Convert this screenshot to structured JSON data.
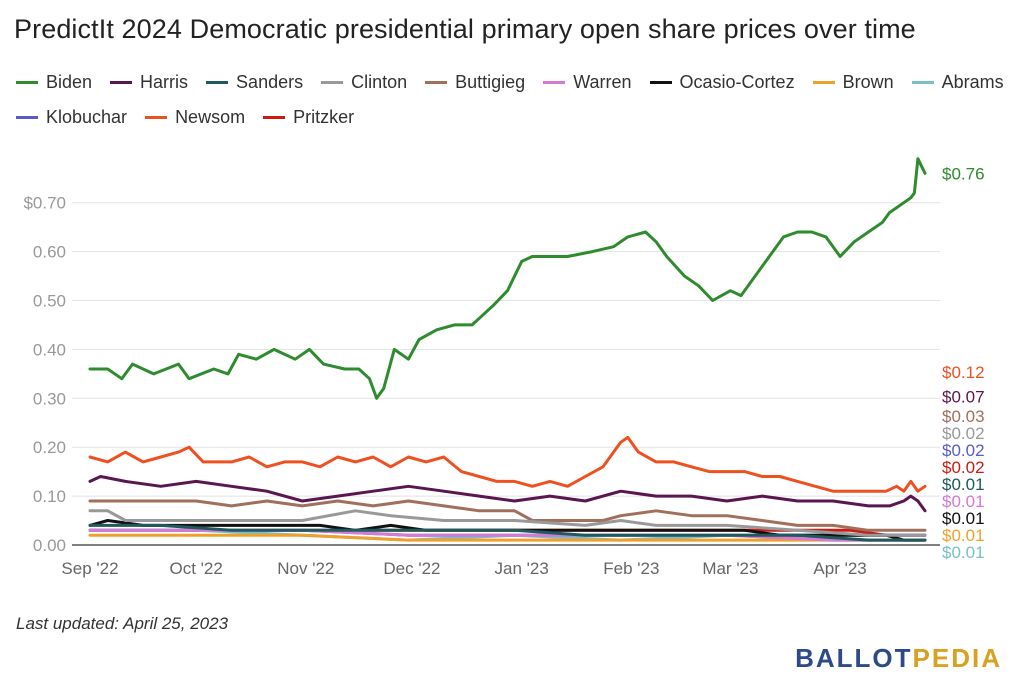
{
  "chart_data": {
    "type": "line",
    "title": "PredictIt 2024 Democratic presidential primary open share prices over time",
    "footer": "Last updated: April 25, 2023",
    "ylim": [
      0,
      0.8
    ],
    "yticks": [
      "$0.70",
      "0.60",
      "0.50",
      "0.40",
      "0.30",
      "0.20",
      "0.10",
      "0.00"
    ],
    "ytick_values": [
      0.7,
      0.6,
      0.5,
      0.4,
      0.3,
      0.2,
      0.1,
      0.0
    ],
    "xticks": [
      "Sep '22",
      "Oct '22",
      "Nov '22",
      "Dec '22",
      "Jan '23",
      "Feb '23",
      "Mar '23",
      "Apr '23"
    ],
    "xtick_days": [
      0,
      30,
      61,
      91,
      122,
      153,
      181,
      212
    ],
    "x_end_day": 236,
    "x_start": "2022-09-01",
    "x_end": "2023-04-25",
    "grid": true,
    "legend_position": "top",
    "series": [
      {
        "name": "Biden",
        "color": "#2e8b2e",
        "end_label": "$0.76",
        "points": [
          [
            0,
            0.36
          ],
          [
            5,
            0.36
          ],
          [
            9,
            0.34
          ],
          [
            12,
            0.37
          ],
          [
            18,
            0.35
          ],
          [
            25,
            0.37
          ],
          [
            28,
            0.34
          ],
          [
            35,
            0.36
          ],
          [
            39,
            0.35
          ],
          [
            42,
            0.39
          ],
          [
            47,
            0.38
          ],
          [
            52,
            0.4
          ],
          [
            58,
            0.38
          ],
          [
            62,
            0.4
          ],
          [
            66,
            0.37
          ],
          [
            72,
            0.36
          ],
          [
            76,
            0.36
          ],
          [
            79,
            0.34
          ],
          [
            81,
            0.3
          ],
          [
            83,
            0.32
          ],
          [
            86,
            0.4
          ],
          [
            90,
            0.38
          ],
          [
            93,
            0.42
          ],
          [
            98,
            0.44
          ],
          [
            103,
            0.45
          ],
          [
            108,
            0.45
          ],
          [
            111,
            0.47
          ],
          [
            114,
            0.49
          ],
          [
            118,
            0.52
          ],
          [
            122,
            0.58
          ],
          [
            125,
            0.59
          ],
          [
            130,
            0.59
          ],
          [
            135,
            0.59
          ],
          [
            142,
            0.6
          ],
          [
            148,
            0.61
          ],
          [
            152,
            0.63
          ],
          [
            157,
            0.64
          ],
          [
            160,
            0.62
          ],
          [
            163,
            0.59
          ],
          [
            168,
            0.55
          ],
          [
            172,
            0.53
          ],
          [
            176,
            0.5
          ],
          [
            181,
            0.52
          ],
          [
            184,
            0.51
          ],
          [
            188,
            0.55
          ],
          [
            192,
            0.59
          ],
          [
            196,
            0.63
          ],
          [
            200,
            0.64
          ],
          [
            204,
            0.64
          ],
          [
            208,
            0.63
          ],
          [
            212,
            0.59
          ],
          [
            216,
            0.62
          ],
          [
            220,
            0.64
          ],
          [
            224,
            0.66
          ],
          [
            226,
            0.68
          ],
          [
            228,
            0.69
          ],
          [
            230,
            0.7
          ],
          [
            232,
            0.71
          ],
          [
            233,
            0.72
          ],
          [
            234,
            0.79
          ],
          [
            236,
            0.76
          ]
        ]
      },
      {
        "name": "Harris",
        "color": "#5a1650",
        "end_label": "$0.07",
        "points": [
          [
            0,
            0.13
          ],
          [
            3,
            0.14
          ],
          [
            10,
            0.13
          ],
          [
            20,
            0.12
          ],
          [
            30,
            0.13
          ],
          [
            40,
            0.12
          ],
          [
            50,
            0.11
          ],
          [
            60,
            0.09
          ],
          [
            70,
            0.1
          ],
          [
            80,
            0.11
          ],
          [
            90,
            0.12
          ],
          [
            100,
            0.11
          ],
          [
            110,
            0.1
          ],
          [
            120,
            0.09
          ],
          [
            130,
            0.1
          ],
          [
            140,
            0.09
          ],
          [
            150,
            0.11
          ],
          [
            160,
            0.1
          ],
          [
            170,
            0.1
          ],
          [
            180,
            0.09
          ],
          [
            190,
            0.1
          ],
          [
            200,
            0.09
          ],
          [
            210,
            0.09
          ],
          [
            220,
            0.08
          ],
          [
            226,
            0.08
          ],
          [
            230,
            0.09
          ],
          [
            232,
            0.1
          ],
          [
            234,
            0.09
          ],
          [
            236,
            0.07
          ]
        ]
      },
      {
        "name": "Sanders",
        "color": "#1f5a5e",
        "end_label": "$0.01",
        "points": [
          [
            0,
            0.04
          ],
          [
            20,
            0.04
          ],
          [
            40,
            0.03
          ],
          [
            60,
            0.03
          ],
          [
            80,
            0.03
          ],
          [
            100,
            0.03
          ],
          [
            120,
            0.03
          ],
          [
            140,
            0.02
          ],
          [
            160,
            0.02
          ],
          [
            180,
            0.02
          ],
          [
            200,
            0.02
          ],
          [
            220,
            0.01
          ],
          [
            236,
            0.01
          ]
        ]
      },
      {
        "name": "Clinton",
        "color": "#999999",
        "end_label": "$0.02",
        "points": [
          [
            0,
            0.07
          ],
          [
            5,
            0.07
          ],
          [
            10,
            0.05
          ],
          [
            20,
            0.05
          ],
          [
            40,
            0.05
          ],
          [
            60,
            0.05
          ],
          [
            75,
            0.07
          ],
          [
            85,
            0.06
          ],
          [
            100,
            0.05
          ],
          [
            120,
            0.05
          ],
          [
            140,
            0.04
          ],
          [
            150,
            0.05
          ],
          [
            160,
            0.04
          ],
          [
            180,
            0.04
          ],
          [
            200,
            0.03
          ],
          [
            220,
            0.02
          ],
          [
            236,
            0.02
          ]
        ]
      },
      {
        "name": "Buttigieg",
        "color": "#a0705c",
        "end_label": "$0.03",
        "points": [
          [
            0,
            0.09
          ],
          [
            10,
            0.09
          ],
          [
            20,
            0.09
          ],
          [
            30,
            0.09
          ],
          [
            40,
            0.08
          ],
          [
            50,
            0.09
          ],
          [
            60,
            0.08
          ],
          [
            70,
            0.09
          ],
          [
            80,
            0.08
          ],
          [
            90,
            0.09
          ],
          [
            100,
            0.08
          ],
          [
            110,
            0.07
          ],
          [
            120,
            0.07
          ],
          [
            125,
            0.05
          ],
          [
            135,
            0.05
          ],
          [
            145,
            0.05
          ],
          [
            150,
            0.06
          ],
          [
            160,
            0.07
          ],
          [
            170,
            0.06
          ],
          [
            180,
            0.06
          ],
          [
            190,
            0.05
          ],
          [
            200,
            0.04
          ],
          [
            210,
            0.04
          ],
          [
            220,
            0.03
          ],
          [
            236,
            0.03
          ]
        ]
      },
      {
        "name": "Warren",
        "color": "#d479d4",
        "end_label": "$0.01",
        "points": [
          [
            0,
            0.03
          ],
          [
            30,
            0.03
          ],
          [
            60,
            0.03
          ],
          [
            90,
            0.02
          ],
          [
            120,
            0.02
          ],
          [
            150,
            0.02
          ],
          [
            180,
            0.02
          ],
          [
            210,
            0.01
          ],
          [
            236,
            0.01
          ]
        ]
      },
      {
        "name": "Ocasio-Cortez",
        "color": "#111111",
        "end_label": "$0.01",
        "points": [
          [
            0,
            0.04
          ],
          [
            5,
            0.05
          ],
          [
            15,
            0.04
          ],
          [
            25,
            0.04
          ],
          [
            35,
            0.04
          ],
          [
            45,
            0.04
          ],
          [
            55,
            0.04
          ],
          [
            65,
            0.04
          ],
          [
            75,
            0.03
          ],
          [
            85,
            0.04
          ],
          [
            95,
            0.03
          ],
          [
            105,
            0.03
          ],
          [
            115,
            0.03
          ],
          [
            125,
            0.03
          ],
          [
            135,
            0.03
          ],
          [
            145,
            0.03
          ],
          [
            155,
            0.03
          ],
          [
            165,
            0.03
          ],
          [
            175,
            0.03
          ],
          [
            185,
            0.03
          ],
          [
            195,
            0.02
          ],
          [
            205,
            0.02
          ],
          [
            215,
            0.02
          ],
          [
            225,
            0.02
          ],
          [
            230,
            0.01
          ],
          [
            236,
            0.01
          ]
        ]
      },
      {
        "name": "Brown",
        "color": "#f0a02a",
        "end_label": "$0.01",
        "points": [
          [
            0,
            0.02
          ],
          [
            30,
            0.02
          ],
          [
            60,
            0.02
          ],
          [
            90,
            0.01
          ],
          [
            120,
            0.01
          ],
          [
            150,
            0.01
          ],
          [
            180,
            0.01
          ],
          [
            210,
            0.01
          ],
          [
            236,
            0.01
          ]
        ]
      },
      {
        "name": "Abrams",
        "color": "#78c0c8",
        "end_label": "$0.01",
        "points": [
          [
            0,
            0.03
          ],
          [
            30,
            0.03
          ],
          [
            60,
            0.02
          ],
          [
            90,
            0.01
          ],
          [
            120,
            0.02
          ],
          [
            150,
            0.01
          ],
          [
            180,
            0.02
          ],
          [
            210,
            0.01
          ],
          [
            236,
            0.01
          ]
        ]
      },
      {
        "name": "Klobuchar",
        "color": "#5a5ac8",
        "end_label": "$0.02",
        "points": [
          [
            0,
            0.03
          ],
          [
            30,
            0.03
          ],
          [
            60,
            0.03
          ],
          [
            90,
            0.02
          ],
          [
            120,
            0.02
          ],
          [
            150,
            0.02
          ],
          [
            180,
            0.02
          ],
          [
            210,
            0.02
          ],
          [
            236,
            0.02
          ]
        ]
      },
      {
        "name": "Newsom",
        "color": "#ee5020",
        "end_label": "$0.12",
        "points": [
          [
            0,
            0.18
          ],
          [
            5,
            0.17
          ],
          [
            10,
            0.19
          ],
          [
            15,
            0.17
          ],
          [
            20,
            0.18
          ],
          [
            25,
            0.19
          ],
          [
            28,
            0.2
          ],
          [
            32,
            0.17
          ],
          [
            40,
            0.17
          ],
          [
            45,
            0.18
          ],
          [
            50,
            0.16
          ],
          [
            55,
            0.17
          ],
          [
            60,
            0.17
          ],
          [
            65,
            0.16
          ],
          [
            70,
            0.18
          ],
          [
            75,
            0.17
          ],
          [
            80,
            0.18
          ],
          [
            85,
            0.16
          ],
          [
            90,
            0.18
          ],
          [
            95,
            0.17
          ],
          [
            100,
            0.18
          ],
          [
            105,
            0.15
          ],
          [
            110,
            0.14
          ],
          [
            115,
            0.13
          ],
          [
            120,
            0.13
          ],
          [
            125,
            0.12
          ],
          [
            130,
            0.13
          ],
          [
            135,
            0.12
          ],
          [
            140,
            0.14
          ],
          [
            145,
            0.16
          ],
          [
            150,
            0.21
          ],
          [
            152,
            0.22
          ],
          [
            155,
            0.19
          ],
          [
            160,
            0.17
          ],
          [
            165,
            0.17
          ],
          [
            170,
            0.16
          ],
          [
            175,
            0.15
          ],
          [
            180,
            0.15
          ],
          [
            185,
            0.15
          ],
          [
            190,
            0.14
          ],
          [
            195,
            0.14
          ],
          [
            200,
            0.13
          ],
          [
            205,
            0.12
          ],
          [
            210,
            0.11
          ],
          [
            215,
            0.11
          ],
          [
            220,
            0.11
          ],
          [
            225,
            0.11
          ],
          [
            228,
            0.12
          ],
          [
            230,
            0.11
          ],
          [
            232,
            0.13
          ],
          [
            234,
            0.11
          ],
          [
            236,
            0.12
          ]
        ]
      },
      {
        "name": "Pritzker",
        "color": "#cc1a14",
        "end_label": "$0.02",
        "points": [
          [
            0,
            0.03
          ],
          [
            30,
            0.03
          ],
          [
            60,
            0.03
          ],
          [
            90,
            0.03
          ],
          [
            120,
            0.03
          ],
          [
            150,
            0.03
          ],
          [
            180,
            0.03
          ],
          [
            200,
            0.03
          ],
          [
            215,
            0.03
          ],
          [
            225,
            0.02
          ],
          [
            236,
            0.02
          ]
        ]
      }
    ]
  }
}
